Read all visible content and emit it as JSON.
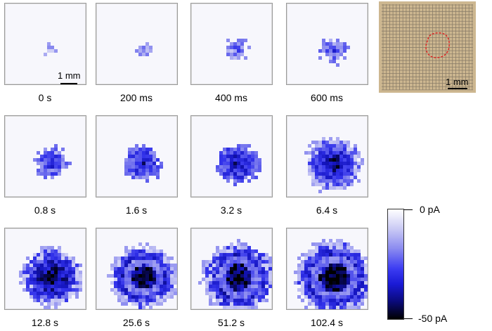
{
  "figure": {
    "time_labels": [
      "0 s",
      "200 ms",
      "400 ms",
      "600 ms",
      "0.8 s",
      "1.6 s",
      "3.2 s",
      "6.4 s",
      "12.8 s",
      "25.6 s",
      "51.2 s",
      "102.4 s"
    ],
    "scale_bar_label": "1 mm",
    "inset_scale_bar_label": "1 mm",
    "colorbar": {
      "max_label": "0 pA",
      "min_label": "-50 pA"
    },
    "colors": {
      "max_current": "#000000",
      "mid_current": "#1a1ad6",
      "zero_current": "#ffffff",
      "outline": "#e02020"
    }
  }
}
